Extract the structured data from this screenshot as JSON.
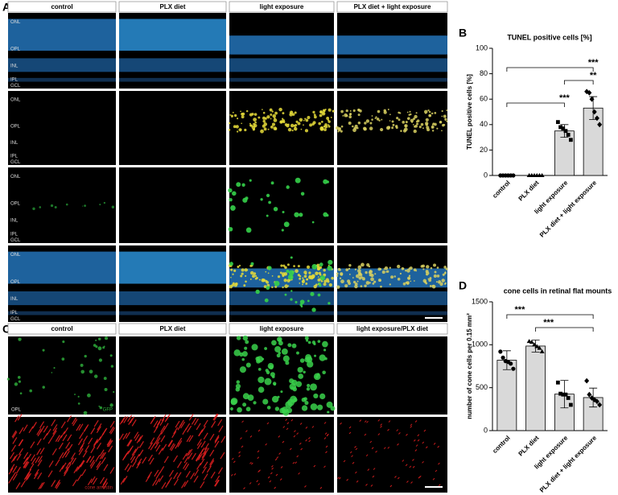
{
  "panel_labels": [
    "A",
    "B",
    "C",
    "D"
  ],
  "panel_a": {
    "columns": [
      "control",
      "PLX diet",
      "light exposure",
      "PLX diet + light exposure"
    ],
    "layers": [
      "ONL",
      "OPL",
      "INL",
      "IPL",
      "GCL"
    ]
  },
  "panel_c": {
    "columns": [
      "control",
      "PLX diet",
      "light exposure",
      "light exposure/PLX diet"
    ],
    "labels": [
      "OPL",
      "GFP",
      "cone arrestin"
    ]
  },
  "chart_data": [
    {
      "type": "bar",
      "title": "TUNEL positive cells [%]",
      "y_label": "TUNEL positive cells [%]",
      "categories": [
        "control",
        "PLX diet",
        "light exposure",
        "PLX diet + light exposure"
      ],
      "values": [
        0,
        0,
        35,
        53
      ],
      "errors": [
        0,
        0,
        5,
        9
      ],
      "points": [
        [
          0,
          0,
          0,
          0,
          0,
          0
        ],
        [
          0,
          0,
          0,
          0,
          0,
          0
        ],
        [
          42,
          38,
          37,
          35,
          32,
          28
        ],
        [
          66,
          65,
          60,
          50,
          45,
          40
        ]
      ],
      "color": "#d9d9d9",
      "ylim": [
        0,
        100
      ],
      "yticks": [
        0,
        20,
        40,
        60,
        80,
        100
      ],
      "annotations": [
        "***",
        "**",
        "***"
      ]
    },
    {
      "type": "bar",
      "title": "cone cells in retinal flat mounts",
      "y_label": "number of cone cells per 0.15 mm²",
      "categories": [
        "control",
        "PLX diet",
        "light exposure",
        "PLX diet + light exposure"
      ],
      "values": [
        820,
        985,
        425,
        385
      ],
      "errors": [
        110,
        70,
        160,
        110
      ],
      "points": [
        [
          920,
          850,
          810,
          800,
          780,
          720
        ],
        [
          1040,
          1030,
          1000,
          980,
          960,
          920
        ],
        [
          560,
          430,
          420,
          420,
          380,
          300
        ],
        [
          580,
          420,
          380,
          360,
          340,
          300
        ]
      ],
      "color": "#d9d9d9",
      "ylim": [
        0,
        1500
      ],
      "yticks": [
        0,
        500,
        1000,
        1500
      ],
      "annotations": [
        "***",
        "***"
      ]
    }
  ]
}
